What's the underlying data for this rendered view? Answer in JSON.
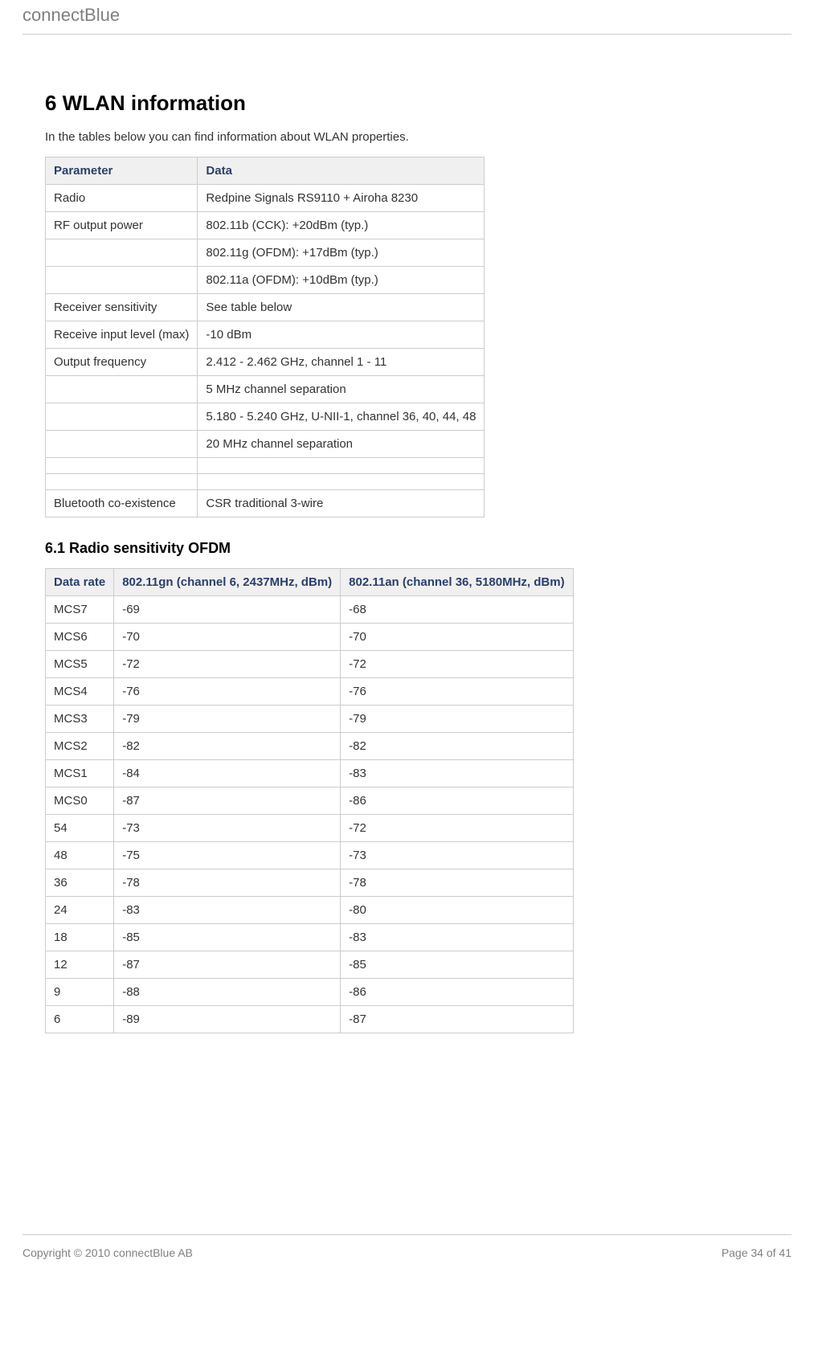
{
  "header": {
    "brand": "connectBlue"
  },
  "section": {
    "heading": "6 WLAN information",
    "intro": "In the tables below you can find information about WLAN properties."
  },
  "table1": {
    "columns": [
      "Parameter",
      "Data"
    ],
    "rows": [
      [
        "Radio",
        "Redpine Signals RS9110 + Airoha 8230"
      ],
      [
        "RF output power",
        "802.11b (CCK): +20dBm (typ.)"
      ],
      [
        "",
        "802.11g (OFDM): +17dBm (typ.)"
      ],
      [
        "",
        "802.11a (OFDM): +10dBm (typ.)"
      ],
      [
        "Receiver sensitivity",
        "See table below"
      ],
      [
        "Receive input level (max)",
        "-10 dBm"
      ],
      [
        "Output frequency",
        "2.412 - 2.462 GHz, channel 1 - 11"
      ],
      [
        "",
        "5 MHz channel separation"
      ],
      [
        "",
        "5.180 - 5.240 GHz, U-NII-1, channel 36, 40, 44, 48"
      ],
      [
        "",
        "20 MHz channel separation"
      ],
      [
        "",
        ""
      ],
      [
        "",
        ""
      ],
      [
        "Bluetooth co-existence",
        "CSR traditional 3-wire"
      ]
    ],
    "header_bg": "#f0f0f0",
    "header_color": "#2a3f6b",
    "border_color": "#cccccc",
    "col_widths": [
      "auto",
      "auto"
    ]
  },
  "subsection": {
    "heading": "6.1 Radio sensitivity OFDM"
  },
  "table2": {
    "columns": [
      "Data rate",
      "802.11gn (channel 6, 2437MHz, dBm)",
      "802.11an (channel 36, 5180MHz, dBm)"
    ],
    "rows": [
      [
        "MCS7",
        "-69",
        "-68"
      ],
      [
        "MCS6",
        "-70",
        "-70"
      ],
      [
        "MCS5",
        "-72",
        "-72"
      ],
      [
        "MCS4",
        "-76",
        "-76"
      ],
      [
        "MCS3",
        "-79",
        "-79"
      ],
      [
        "MCS2",
        "-82",
        "-82"
      ],
      [
        "MCS1",
        "-84",
        "-83"
      ],
      [
        "MCS0",
        "-87",
        "-86"
      ],
      [
        "54",
        "-73",
        "-72"
      ],
      [
        "48",
        "-75",
        "-73"
      ],
      [
        "36",
        "-78",
        "-78"
      ],
      [
        "24",
        "-83",
        "-80"
      ],
      [
        "18",
        "-85",
        "-83"
      ],
      [
        "12",
        "-87",
        "-85"
      ],
      [
        "9",
        "-88",
        "-86"
      ],
      [
        "6",
        "-89",
        "-87"
      ]
    ],
    "header_bg": "#f0f0f0",
    "header_color": "#2a3f6b",
    "border_color": "#cccccc"
  },
  "footer": {
    "copyright": "Copyright © 2010 connectBlue AB",
    "page": "Page 34 of 41"
  }
}
